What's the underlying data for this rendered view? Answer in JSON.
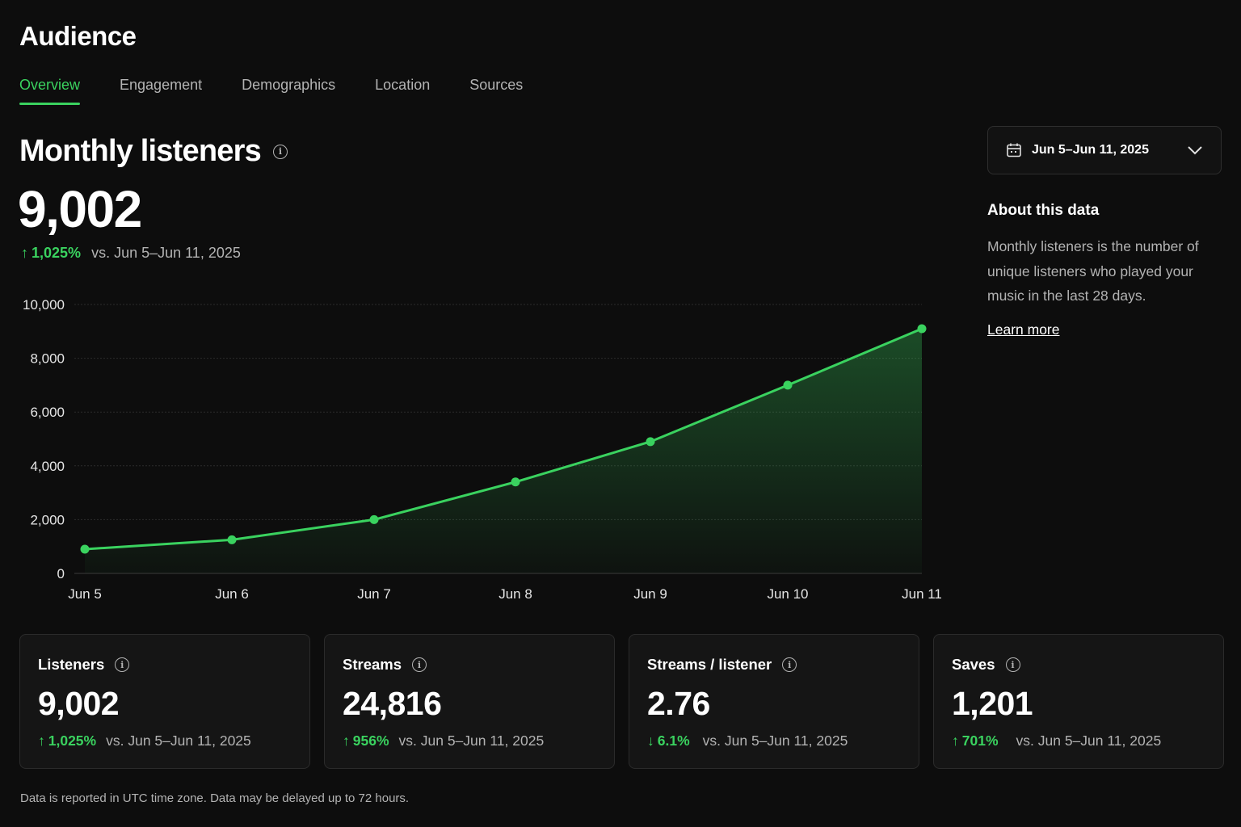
{
  "page": {
    "title": "Audience"
  },
  "tabs": [
    {
      "label": "Overview",
      "active": true
    },
    {
      "label": "Engagement",
      "active": false
    },
    {
      "label": "Demographics",
      "active": false
    },
    {
      "label": "Location",
      "active": false
    },
    {
      "label": "Sources",
      "active": false
    }
  ],
  "main": {
    "title": "Monthly listeners",
    "value": "9,002",
    "delta": "1,025%",
    "delta_direction": "up",
    "comparison": "vs. Jun 5–Jun 11, 2025"
  },
  "date_picker": {
    "label": "Jun 5–Jun 11, 2025",
    "icon": "calendar-icon"
  },
  "about": {
    "title": "About this data",
    "body": "Monthly listeners is the number of unique listeners who played your music in the last 28 days.",
    "link": "Learn more"
  },
  "chart_data": {
    "type": "area",
    "title": "",
    "xlabel": "",
    "ylabel": "",
    "categories": [
      "Jun 5",
      "Jun 6",
      "Jun 7",
      "Jun 8",
      "Jun 9",
      "Jun 10",
      "Jun 11"
    ],
    "values": [
      900,
      1250,
      2000,
      3400,
      4900,
      7000,
      9100
    ],
    "ylim": [
      0,
      10000
    ],
    "yticks": [
      0,
      2000,
      4000,
      6000,
      8000,
      10000
    ],
    "ytick_labels": [
      "0",
      "2,000",
      "4,000",
      "6,000",
      "8,000",
      "10,000"
    ],
    "grid": true,
    "line_color": "#3ad25f"
  },
  "cards": [
    {
      "title": "Listeners",
      "value": "9,002",
      "delta": "1,025%",
      "direction": "up",
      "comparison": "vs. Jun 5–Jun 11, 2025"
    },
    {
      "title": "Streams",
      "value": "24,816",
      "delta": "956%",
      "direction": "up",
      "comparison": "vs. Jun 5–Jun 11, 2025"
    },
    {
      "title": "Streams / listener",
      "value": "2.76",
      "delta": "6.1%",
      "direction": "down",
      "comparison": "vs. Jun 5–Jun 11, 2025"
    },
    {
      "title": "Saves",
      "value": "1,201",
      "delta": "701%",
      "direction": "up",
      "comparison": "vs. Jun 5–Jun 11, 2025"
    }
  ],
  "footer": {
    "note": "Data is reported in UTC time zone. Data may be delayed up to 72 hours."
  },
  "colors": {
    "accent": "#3ad25f",
    "background": "#0d0d0d",
    "card": "#151515"
  }
}
